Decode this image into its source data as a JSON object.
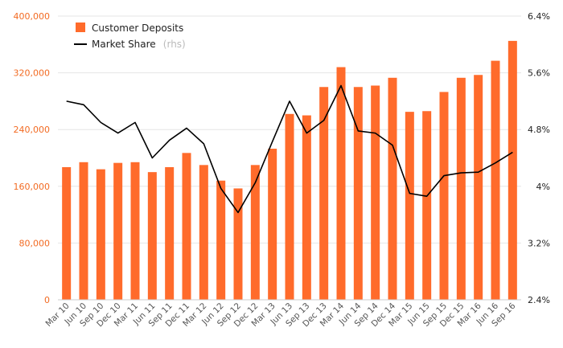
{
  "chart_data": {
    "type": "bar",
    "categories": [
      "Mar 10",
      "Jun 10",
      "Sep 10",
      "Dec 10",
      "Mar 11",
      "Jun 11",
      "Sep 11",
      "Dec 11",
      "Mar 12",
      "Jun 12",
      "Sep 12",
      "Dec 12",
      "Mar 13",
      "Jun 13",
      "Sep 13",
      "Dec 13",
      "Mar 14",
      "Jun 14",
      "Sep 14",
      "Dec 14",
      "Mar 15",
      "Jun 15",
      "Sep 15",
      "Dec 15",
      "Mar 16",
      "Jun 16",
      "Sep 16"
    ],
    "series": [
      {
        "name": "Customer Deposits",
        "type": "bar",
        "axis": "left",
        "color": "#ff6b2b",
        "values": [
          187000,
          194000,
          184000,
          193000,
          194000,
          180000,
          187000,
          207000,
          190000,
          168000,
          157000,
          190000,
          213000,
          262000,
          260000,
          300000,
          328000,
          300000,
          302000,
          313000,
          265000,
          266000,
          293000,
          313000,
          317000,
          337000,
          365000
        ]
      },
      {
        "name": "Market Share",
        "type": "line",
        "axis": "right",
        "color": "#000000",
        "values": [
          5.2,
          5.15,
          4.9,
          4.75,
          4.9,
          4.4,
          4.65,
          4.82,
          4.6,
          3.97,
          3.63,
          4.05,
          4.63,
          5.2,
          4.75,
          4.93,
          5.42,
          4.78,
          4.75,
          4.58,
          3.9,
          3.86,
          4.15,
          4.19,
          4.2,
          4.33,
          4.48
        ]
      }
    ],
    "legend": [
      {
        "label": "Customer Deposits",
        "suffix": ""
      },
      {
        "label": "Market Share",
        "suffix": "(rhs)"
      }
    ],
    "legend_position": "top-left",
    "y_left": {
      "lim": [
        0,
        400000
      ],
      "ticks": [
        0,
        80000,
        160000,
        240000,
        320000,
        400000
      ],
      "tick_labels": [
        "0",
        "80,000",
        "160,000",
        "240,000",
        "320,000",
        "400,000"
      ],
      "color": "#f26b23"
    },
    "y_right": {
      "lim": [
        2.4,
        6.4
      ],
      "ticks": [
        2.4,
        3.2,
        4.0,
        4.8,
        5.6,
        6.4
      ],
      "tick_labels": [
        "2.4%",
        "3.2%",
        "4%",
        "4.8%",
        "5.6%",
        "6.4%"
      ],
      "color": "#222222"
    },
    "grid": true,
    "title": "",
    "xlabel": "",
    "ylabel": ""
  }
}
